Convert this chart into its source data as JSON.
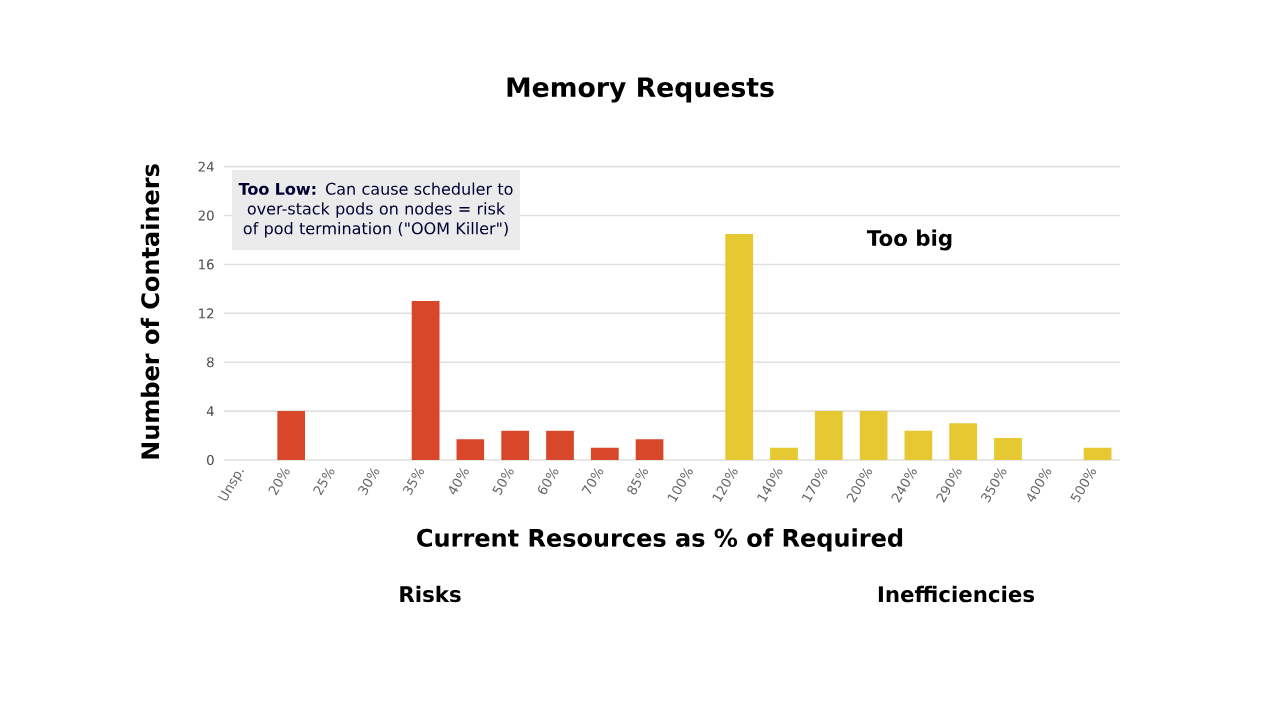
{
  "chart_data": {
    "type": "bar",
    "title": "Memory Requests",
    "xlabel": "Current Resources as % of Required",
    "ylabel": "Number of Containers",
    "categories": [
      "Unsp.",
      "20%",
      "25%",
      "30%",
      "35%",
      "40%",
      "50%",
      "60%",
      "70%",
      "85%",
      "100%",
      "120%",
      "140%",
      "170%",
      "200%",
      "240%",
      "290%",
      "350%",
      "400%",
      "500%"
    ],
    "values": [
      0,
      4,
      0,
      0,
      13,
      1.7,
      2.4,
      2.4,
      1,
      1.7,
      0,
      18.5,
      1,
      4,
      4,
      2.4,
      3,
      1.8,
      0,
      1
    ],
    "colors": [
      "#d9472b",
      "#d9472b",
      "#d9472b",
      "#d9472b",
      "#d9472b",
      "#d9472b",
      "#d9472b",
      "#d9472b",
      "#d9472b",
      "#d9472b",
      "#e5c832",
      "#e5c832",
      "#e5c832",
      "#e5c832",
      "#e5c832",
      "#e5c832",
      "#e5c832",
      "#e5c832",
      "#e5c832",
      "#e5c832"
    ],
    "ylim": [
      0,
      24
    ],
    "yticks": [
      0,
      4,
      8,
      12,
      16,
      20,
      24
    ],
    "grid": "y",
    "annotations": [
      "**Too Low:** Can cause scheduler to over-stack pods on nodes = risk of pod termination (\"OOM Killer\")",
      "Too big",
      "Risks",
      "Inefficiencies"
    ]
  }
}
